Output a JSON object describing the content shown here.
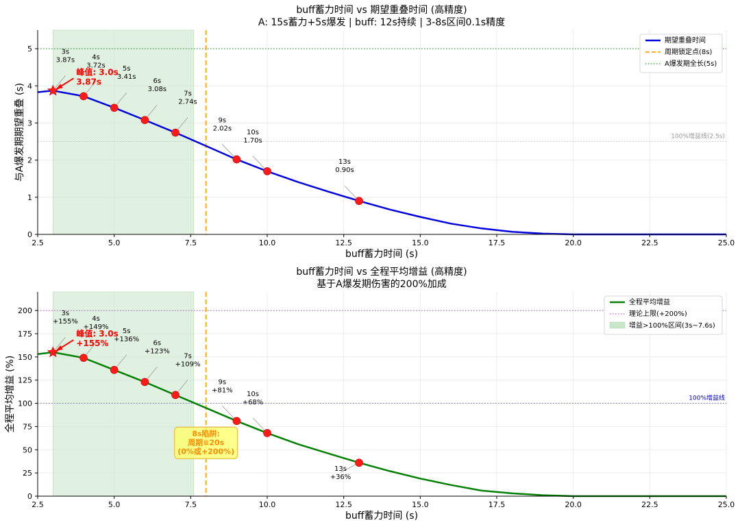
{
  "chart_data": [
    {
      "type": "line",
      "title": "buff蓄力时间 vs 期望重叠时间 (高精度)",
      "subtitle": "A: 15s蓄力+5s爆发 | buff: 12s持续 | 3-8s区间0.1s精度",
      "xlabel": "buff蓄力时间 (s)",
      "ylabel": "与A爆发期期望重叠 (s)",
      "xlim": [
        2.5,
        25.0
      ],
      "ylim": [
        0,
        5.5
      ],
      "xticks": [
        2.5,
        5.0,
        7.5,
        10.0,
        12.5,
        15.0,
        17.5,
        20.0,
        22.5,
        25.0
      ],
      "xtick_labels": [
        "2.5",
        "5.0",
        "7.5",
        "10.0",
        "12.5",
        "15.0",
        "17.5",
        "20.0",
        "22.5",
        "25.0"
      ],
      "yticks": [
        0,
        1,
        2,
        3,
        4,
        5
      ],
      "ytick_labels": [
        "0",
        "1",
        "2",
        "3",
        "4",
        "5"
      ],
      "grid": true,
      "line_color": "#0000dd",
      "series": [
        {
          "name": "期望重叠时间",
          "x": [
            2.5,
            3.0,
            4.0,
            5.0,
            6.0,
            7.0,
            8.0,
            9.0,
            10.0,
            11.0,
            12.0,
            13.0,
            14.0,
            15.0,
            16.0,
            17.0,
            18.0,
            19.0,
            20.0,
            22.5,
            25.0
          ],
          "values": [
            3.83,
            3.87,
            3.72,
            3.41,
            3.08,
            2.74,
            2.38,
            2.02,
            1.7,
            1.41,
            1.15,
            0.9,
            0.67,
            0.47,
            0.29,
            0.16,
            0.07,
            0.02,
            0.0,
            0.0,
            0.0
          ]
        }
      ],
      "markers": [
        {
          "x": 3,
          "y": 3.87,
          "label": "3s",
          "value_label": "3.87s",
          "star": true
        },
        {
          "x": 4,
          "y": 3.72,
          "label": "4s",
          "value_label": "3.72s"
        },
        {
          "x": 5,
          "y": 3.41,
          "label": "5s",
          "value_label": "3.41s"
        },
        {
          "x": 6,
          "y": 3.08,
          "label": "6s",
          "value_label": "3.08s"
        },
        {
          "x": 7,
          "y": 2.74,
          "label": "7s",
          "value_label": "2.74s"
        },
        {
          "x": 9,
          "y": 2.02,
          "label": "9s",
          "value_label": "2.02s"
        },
        {
          "x": 10,
          "y": 1.7,
          "label": "10s",
          "value_label": "1.70s"
        },
        {
          "x": 13,
          "y": 0.9,
          "label": "13s",
          "value_label": "0.90s"
        }
      ],
      "peak_annotation": {
        "line1": "峰值: 3.0s",
        "line2": "3.87s"
      },
      "shaded_span": [
        3.0,
        7.6
      ],
      "vline": {
        "x": 8.0,
        "label": "周期锁定点(8s)",
        "color": "#ffa500"
      },
      "hline_full": {
        "y": 5.0,
        "label": "A爆发期全长(5s)",
        "color": "#2ca02c"
      },
      "hline_ref": {
        "y": 2.5,
        "label": "100%增益线(2.5s)",
        "color": "#999999"
      },
      "legend_position": "top-right",
      "legend": [
        "期望重叠时间",
        "周期锁定点(8s)",
        "A爆发期全长(5s)"
      ]
    },
    {
      "type": "line",
      "title": "buff蓄力时间 vs 全程平均增益 (高精度)",
      "subtitle": "基于A爆发期伤害的200%加成",
      "xlabel": "buff蓄力时间 (s)",
      "ylabel": "全程平均增益 (%)",
      "xlim": [
        2.5,
        25.0
      ],
      "ylim": [
        0,
        220
      ],
      "xticks": [
        2.5,
        5.0,
        7.5,
        10.0,
        12.5,
        15.0,
        17.5,
        20.0,
        22.5,
        25.0
      ],
      "xtick_labels": [
        "2.5",
        "5.0",
        "7.5",
        "10.0",
        "12.5",
        "15.0",
        "17.5",
        "20.0",
        "22.5",
        "25.0"
      ],
      "yticks": [
        0,
        25,
        50,
        75,
        100,
        125,
        150,
        175,
        200
      ],
      "ytick_labels": [
        "0",
        "25",
        "50",
        "75",
        "100",
        "125",
        "150",
        "175",
        "200"
      ],
      "grid": true,
      "line_color": "#008000",
      "series": [
        {
          "name": "全程平均增益",
          "x": [
            2.5,
            3.0,
            4.0,
            5.0,
            6.0,
            7.0,
            8.0,
            9.0,
            10.0,
            11.0,
            12.0,
            13.0,
            14.0,
            15.0,
            16.0,
            17.0,
            18.0,
            19.0,
            20.0,
            22.5,
            25.0
          ],
          "values": [
            153,
            155,
            149,
            136,
            123,
            109,
            95,
            81,
            68,
            56,
            46,
            36,
            27,
            19,
            12,
            6,
            3,
            1,
            0,
            0,
            0
          ]
        }
      ],
      "markers": [
        {
          "x": 3,
          "y": 155,
          "label": "3s",
          "value_label": "+155%",
          "star": true
        },
        {
          "x": 4,
          "y": 149,
          "label": "4s",
          "value_label": "+149%"
        },
        {
          "x": 5,
          "y": 136,
          "label": "5s",
          "value_label": "+136%"
        },
        {
          "x": 6,
          "y": 123,
          "label": "6s",
          "value_label": "+123%"
        },
        {
          "x": 7,
          "y": 109,
          "label": "7s",
          "value_label": "+109%"
        },
        {
          "x": 9,
          "y": 81,
          "label": "9s",
          "value_label": "+81%"
        },
        {
          "x": 10,
          "y": 68,
          "label": "10s",
          "value_label": "+68%"
        },
        {
          "x": 13,
          "y": 36,
          "label": "13s",
          "value_label": "+36%"
        }
      ],
      "peak_annotation": {
        "line1": "峰值: 3.0s",
        "line2": "+155%"
      },
      "shaded_span": [
        3.0,
        7.6
      ],
      "vline": {
        "x": 8.0,
        "label": "",
        "color": "#ffa500"
      },
      "hline_full": {
        "y": 200,
        "label": "理论上限(+200%)",
        "color": "#cc66cc"
      },
      "hline_ref": {
        "y": 100,
        "label": "100%增益线",
        "color": "#0000cc"
      },
      "trap_box": {
        "line1": "8s陷阱:",
        "line2": "周期≡20s",
        "line3": "(0%或+200%)"
      },
      "legend_position": "top-right",
      "legend": [
        "全程平均增益",
        "理论上限(+200%)",
        "增益>100%区间(3s~7.6s)"
      ]
    }
  ]
}
